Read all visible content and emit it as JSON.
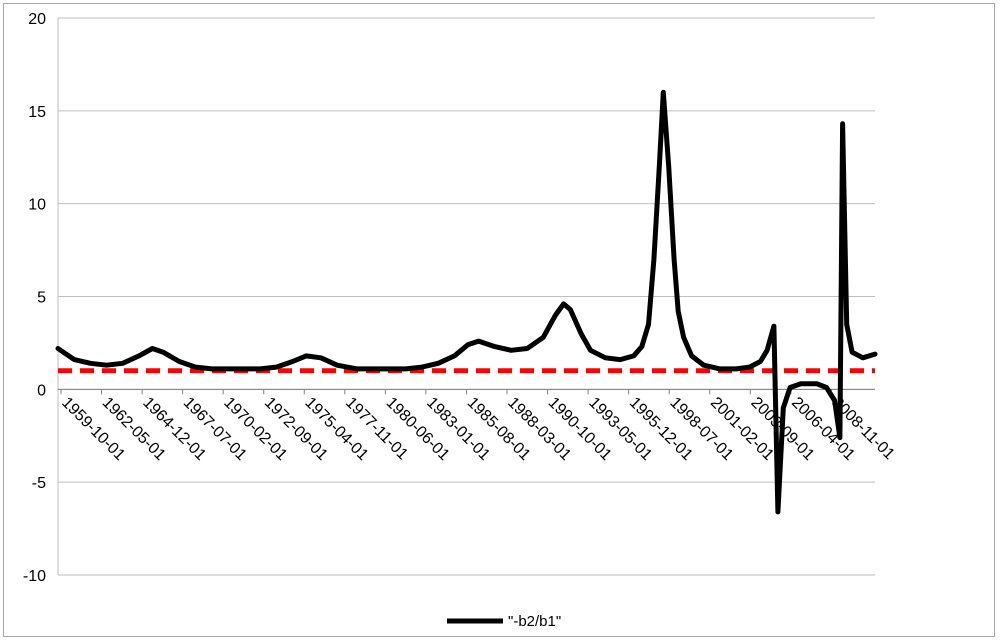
{
  "chart_data": {
    "type": "line",
    "title": "",
    "xlabel": "",
    "ylabel": "",
    "ylim": [
      -10,
      20
    ],
    "yticks": [
      20,
      15,
      10,
      5,
      0,
      -5,
      -10
    ],
    "x_tick_labels": [
      "1959-10-01",
      "1962-05-01",
      "1964-12-01",
      "1967-07-01",
      "1970-02-01",
      "1972-09-01",
      "1975-04-01",
      "1977-11-01",
      "1980-06-01",
      "1983-01-01",
      "1985-08-01",
      "1988-03-01",
      "1990-10-01",
      "1993-05-01",
      "1995-12-01",
      "1998-07-01",
      "2001-02-01",
      "2003-09-01",
      "2006-04-01",
      "2008-11-01"
    ],
    "grid": "horizontal",
    "legend_position": "bottom",
    "series": [
      {
        "name": "\"-b2/b1\"",
        "color": "#000000",
        "style": "solid",
        "points": [
          [
            "1959-07-01",
            2.2
          ],
          [
            "1960-07-01",
            1.6
          ],
          [
            "1961-07-01",
            1.4
          ],
          [
            "1962-07-01",
            1.3
          ],
          [
            "1963-07-01",
            1.4
          ],
          [
            "1964-07-01",
            1.8
          ],
          [
            "1965-05-01",
            2.2
          ],
          [
            "1966-01-01",
            2.0
          ],
          [
            "1967-01-01",
            1.5
          ],
          [
            "1968-01-01",
            1.2
          ],
          [
            "1969-01-01",
            1.1
          ],
          [
            "1970-01-01",
            1.1
          ],
          [
            "1971-01-01",
            1.1
          ],
          [
            "1972-01-01",
            1.1
          ],
          [
            "1973-01-01",
            1.2
          ],
          [
            "1974-01-01",
            1.5
          ],
          [
            "1974-11-01",
            1.8
          ],
          [
            "1975-10-01",
            1.7
          ],
          [
            "1976-10-01",
            1.3
          ],
          [
            "1978-01-01",
            1.1
          ],
          [
            "1979-01-01",
            1.1
          ],
          [
            "1980-01-01",
            1.1
          ],
          [
            "1981-01-01",
            1.1
          ],
          [
            "1982-01-01",
            1.2
          ],
          [
            "1983-01-01",
            1.4
          ],
          [
            "1984-01-01",
            1.8
          ],
          [
            "1984-11-01",
            2.4
          ],
          [
            "1985-07-01",
            2.6
          ],
          [
            "1986-07-01",
            2.3
          ],
          [
            "1987-07-01",
            2.1
          ],
          [
            "1988-07-01",
            2.2
          ],
          [
            "1989-07-01",
            2.8
          ],
          [
            "1990-04-01",
            4.0
          ],
          [
            "1990-10-01",
            4.6
          ],
          [
            "1991-03-01",
            4.3
          ],
          [
            "1991-11-01",
            3.0
          ],
          [
            "1992-06-01",
            2.1
          ],
          [
            "1993-05-01",
            1.7
          ],
          [
            "1994-04-01",
            1.6
          ],
          [
            "1995-02-01",
            1.8
          ],
          [
            "1995-08-01",
            2.3
          ],
          [
            "1996-01-01",
            3.5
          ],
          [
            "1996-05-01",
            7.0
          ],
          [
            "1996-09-01",
            12.0
          ],
          [
            "1996-12-01",
            16.0
          ],
          [
            "1997-04-01",
            12.0
          ],
          [
            "1997-08-01",
            7.0
          ],
          [
            "1997-11-01",
            4.2
          ],
          [
            "1998-03-01",
            2.8
          ],
          [
            "1998-09-01",
            1.8
          ],
          [
            "1999-06-01",
            1.3
          ],
          [
            "2000-06-01",
            1.1
          ],
          [
            "2001-06-01",
            1.1
          ],
          [
            "2002-04-01",
            1.2
          ],
          [
            "2002-12-01",
            1.5
          ],
          [
            "2003-05-01",
            2.1
          ],
          [
            "2003-10-01",
            3.4
          ],
          [
            "2004-01-01",
            -6.6
          ],
          [
            "2004-05-01",
            -1.0
          ],
          [
            "2004-10-01",
            0.1
          ],
          [
            "2005-06-01",
            0.3
          ],
          [
            "2006-06-01",
            0.3
          ],
          [
            "2007-01-01",
            0.1
          ],
          [
            "2007-07-01",
            -0.6
          ],
          [
            "2007-11-01",
            -2.6
          ],
          [
            "2008-01-01",
            14.3
          ],
          [
            "2008-04-01",
            3.5
          ],
          [
            "2008-08-01",
            2.0
          ],
          [
            "2009-04-01",
            1.7
          ],
          [
            "2010-01-01",
            1.9
          ]
        ]
      },
      {
        "name": "",
        "color": "#ff0000",
        "style": "dashed",
        "points": [
          [
            "1959-07-01",
            1.0
          ],
          [
            "2010-01-01",
            1.0
          ]
        ]
      }
    ]
  }
}
